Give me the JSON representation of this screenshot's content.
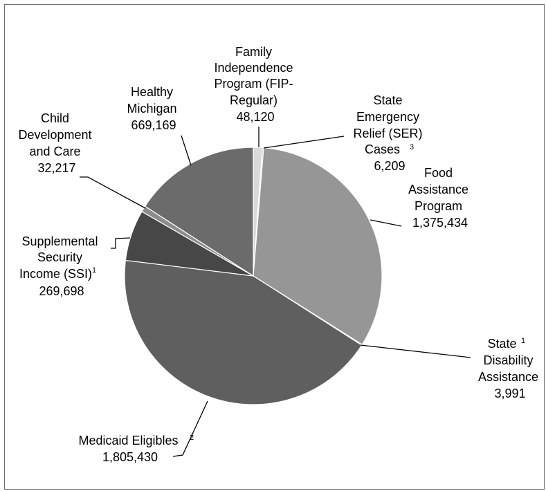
{
  "chart_data": {
    "type": "pie",
    "slices": [
      {
        "name": "Family Independence Program (FIP-Regular)",
        "value": 48120,
        "color": "#d9d9d9"
      },
      {
        "name": "State Emergency Relief (SER) Cases",
        "value": 6209,
        "color": "#a6a6a6"
      },
      {
        "name": "Food Assistance Program",
        "value": 1375434,
        "color": "#969696"
      },
      {
        "name": "State Disability Assistance",
        "value": 3991,
        "color": "#7f7f7f"
      },
      {
        "name": "Medicaid Eligibles",
        "value": 1805430,
        "color": "#5f5f5f"
      },
      {
        "name": "Supplemental Security Income (SSI)",
        "value": 269698,
        "color": "#474747"
      },
      {
        "name": "Child Development and Care",
        "value": 32217,
        "color": "#8c8c8c"
      },
      {
        "name": "Healthy Michigan",
        "value": 669169,
        "color": "#6b6b6b"
      }
    ]
  },
  "labels": {
    "fip": {
      "l1": "Family",
      "l2": "Independence",
      "l3": "Program (FIP-",
      "l4": "Regular)",
      "value": "48,120"
    },
    "ser": {
      "l1": "State",
      "l2": "Emergency",
      "l3": "Relief (SER)",
      "l4": "Cases",
      "sup": "3",
      "value": "6,209"
    },
    "fap": {
      "l1": "Food",
      "l2": "Assistance",
      "l3": "Program",
      "value": "1,375,434"
    },
    "sda": {
      "l1": "State",
      "sup": "1",
      "l2": "Disability",
      "l3": "Assistance",
      "value": "3,991"
    },
    "med": {
      "l1": "Medicaid Eligibles",
      "sup": "2",
      "value": "1,805,430"
    },
    "ssi": {
      "l1": "Supplemental",
      "l2": "Security",
      "l3": "Income (SSI)",
      "sup": "1",
      "value": "269,698"
    },
    "cdc": {
      "l1": "Child",
      "l2": "Development",
      "l3": "and Care",
      "value": "32,217"
    },
    "hm": {
      "l1": "Healthy",
      "l2": "Michigan",
      "value": "669,169"
    }
  }
}
